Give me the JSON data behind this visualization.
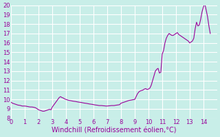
{
  "title": "",
  "xlabel": "Windchill (Refroidissement éolien,°C)",
  "ylabel": "",
  "xlim": [
    0,
    15
  ],
  "ylim": [
    8,
    20
  ],
  "xticks": [
    0,
    1,
    2,
    3,
    4,
    5,
    6,
    7,
    8,
    9,
    10,
    11,
    12,
    13,
    14
  ],
  "yticks": [
    8,
    9,
    10,
    11,
    12,
    13,
    14,
    15,
    16,
    17,
    18,
    19,
    20
  ],
  "bg_color": "#c8eee8",
  "grid_color": "#ffffff",
  "line_color": "#990099",
  "x": [
    0.0,
    0.1,
    0.2,
    0.3,
    0.4,
    0.5,
    0.6,
    0.7,
    0.8,
    0.9,
    1.0,
    1.1,
    1.2,
    1.3,
    1.4,
    1.5,
    1.6,
    1.7,
    1.8,
    1.9,
    2.0,
    2.1,
    2.2,
    2.3,
    2.4,
    2.5,
    2.6,
    2.7,
    2.8,
    2.9,
    3.0,
    3.1,
    3.2,
    3.3,
    3.4,
    3.5,
    3.6,
    3.7,
    3.8,
    3.9,
    4.0,
    4.1,
    4.2,
    4.3,
    4.4,
    4.5,
    4.6,
    4.7,
    4.8,
    4.9,
    5.0,
    5.1,
    5.2,
    5.3,
    5.4,
    5.5,
    5.6,
    5.7,
    5.8,
    5.9,
    6.0,
    6.1,
    6.2,
    6.3,
    6.4,
    6.5,
    6.6,
    6.7,
    6.8,
    6.9,
    7.0,
    7.1,
    7.2,
    7.3,
    7.4,
    7.5,
    7.6,
    7.7,
    7.8,
    7.9,
    8.0,
    8.1,
    8.2,
    8.3,
    8.4,
    8.5,
    8.6,
    8.7,
    8.8,
    8.9,
    9.0,
    9.1,
    9.2,
    9.3,
    9.4,
    9.5,
    9.6,
    9.7,
    9.8,
    9.9,
    10.0,
    10.1,
    10.2,
    10.3,
    10.4,
    10.5,
    10.6,
    10.7,
    10.8,
    10.9,
    11.0,
    11.1,
    11.2,
    11.3,
    11.4,
    11.5,
    11.6,
    11.7,
    11.8,
    11.9,
    12.0,
    12.1,
    12.2,
    12.3,
    12.4,
    12.5,
    12.6,
    12.7,
    12.8,
    12.9,
    13.0,
    13.1,
    13.2,
    13.3,
    13.4,
    13.5,
    13.6,
    13.7,
    13.8,
    13.9,
    14.0,
    14.1,
    14.2,
    14.3,
    14.4,
    14.5
  ],
  "y": [
    9.7,
    9.6,
    9.55,
    9.5,
    9.45,
    9.4,
    9.38,
    9.35,
    9.3,
    9.3,
    9.3,
    9.28,
    9.25,
    9.22,
    9.2,
    9.2,
    9.18,
    9.15,
    9.1,
    9.0,
    8.9,
    8.85,
    8.8,
    8.75,
    8.75,
    8.8,
    8.85,
    8.9,
    8.95,
    8.9,
    9.2,
    9.4,
    9.6,
    9.8,
    10.0,
    10.2,
    10.3,
    10.2,
    10.15,
    10.05,
    10.0,
    9.95,
    9.9,
    9.88,
    9.85,
    9.82,
    9.8,
    9.78,
    9.75,
    9.72,
    9.7,
    9.68,
    9.65,
    9.62,
    9.6,
    9.58,
    9.55,
    9.52,
    9.5,
    9.48,
    9.45,
    9.42,
    9.4,
    9.38,
    9.35,
    9.35,
    9.35,
    9.33,
    9.32,
    9.3,
    9.3,
    9.32,
    9.33,
    9.35,
    9.35,
    9.35,
    9.38,
    9.4,
    9.42,
    9.45,
    9.6,
    9.65,
    9.7,
    9.75,
    9.8,
    9.85,
    9.9,
    9.92,
    9.95,
    9.98,
    10.0,
    10.3,
    10.6,
    10.8,
    10.9,
    10.95,
    11.0,
    11.1,
    11.15,
    11.05,
    11.1,
    11.2,
    11.5,
    12.0,
    12.5,
    13.0,
    13.2,
    13.3,
    12.8,
    12.9,
    14.8,
    15.2,
    16.0,
    16.5,
    16.8,
    17.0,
    16.9,
    16.8,
    16.8,
    16.9,
    17.0,
    17.1,
    16.9,
    16.8,
    16.7,
    16.6,
    16.5,
    16.4,
    16.3,
    16.2,
    16.0,
    16.1,
    16.2,
    16.5,
    17.5,
    18.2,
    17.8,
    17.9,
    18.5,
    19.3,
    19.8,
    20.2,
    19.5,
    18.8,
    17.8,
    17.0
  ]
}
